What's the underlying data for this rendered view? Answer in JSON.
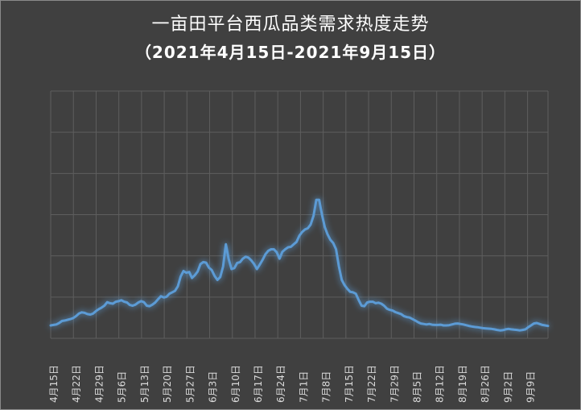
{
  "chart_data": {
    "type": "line",
    "title": "一亩田平台西瓜品类需求热度走势",
    "subtitle": "（2021年4月15日-2021年9月15日）",
    "xlabel": "",
    "ylabel": "",
    "ylim": [
      0,
      100
    ],
    "grid": true,
    "legend": "none",
    "x_tick_labels": [
      "4月15日",
      "4月22日",
      "4月29日",
      "5月6日",
      "5月13日",
      "5月20日",
      "5月27日",
      "6月3日",
      "6月10日",
      "6月17日",
      "6月24日",
      "7月1日",
      "7月8日",
      "7月15日",
      "7月22日",
      "7月29日",
      "8月5日",
      "8月12日",
      "8月19日",
      "8月26日",
      "9月2日",
      "9月9日"
    ],
    "line_color": "#5b9bd5",
    "background_color": "#404040",
    "series": [
      {
        "values": [
          5.2,
          5.4,
          5.6,
          6.2,
          7.0,
          7.2,
          7.5,
          7.8,
          8.2,
          9.0,
          10.0,
          10.5,
          10.3,
          9.8,
          9.6,
          10.0,
          11.0,
          11.8,
          12.4,
          13.2,
          14.6,
          14.2,
          14.0,
          14.8,
          15.0,
          15.4,
          14.8,
          14.5,
          13.5,
          13.2,
          13.6,
          14.5,
          15.0,
          14.6,
          13.2,
          13.0,
          13.6,
          14.5,
          15.8,
          17.0,
          16.5,
          16.8,
          18.0,
          18.6,
          19.2,
          21.0,
          25.0,
          27.2,
          26.5,
          26.8,
          24.4,
          25.5,
          27.0,
          30.0,
          30.8,
          30.6,
          28.6,
          27.6,
          25.2,
          23.6,
          24.8,
          29.0,
          38.0,
          32.0,
          28.0,
          28.4,
          30.5,
          30.8,
          32.2,
          33.0,
          32.6,
          31.5,
          30.0,
          28.0,
          29.8,
          31.8,
          34.0,
          35.4,
          36.0,
          36.0,
          34.8,
          32.2,
          35.0,
          36.0,
          36.8,
          37.0,
          38.0,
          39.0,
          41.5,
          43.0,
          44.0,
          44.5,
          46.0,
          49.5,
          56.0,
          56.0,
          50.0,
          45.0,
          42.0,
          39.8,
          38.5,
          36.0,
          29.0,
          23.6,
          21.5,
          20.0,
          18.8,
          18.6,
          18.0,
          15.5,
          13.2,
          13.0,
          14.5,
          14.8,
          14.8,
          14.2,
          14.4,
          14.0,
          13.2,
          12.0,
          11.5,
          11.2,
          10.6,
          10.2,
          9.8,
          9.0,
          8.6,
          8.4,
          7.8,
          7.2,
          6.5,
          6.0,
          5.8,
          5.6,
          5.8,
          5.5,
          5.4,
          5.4,
          5.5,
          5.2,
          5.2,
          5.3,
          5.6,
          5.9,
          6.0,
          5.8,
          5.6,
          5.3,
          5.0,
          4.8,
          4.6,
          4.5,
          4.3,
          4.1,
          4.0,
          3.9,
          3.8,
          3.6,
          3.4,
          3.2,
          3.3,
          3.6,
          3.8,
          3.6,
          3.5,
          3.4,
          3.2,
          3.4,
          3.6,
          4.5,
          5.2,
          6.0,
          6.2,
          5.8,
          5.4,
          5.2,
          5.0
        ]
      }
    ]
  }
}
